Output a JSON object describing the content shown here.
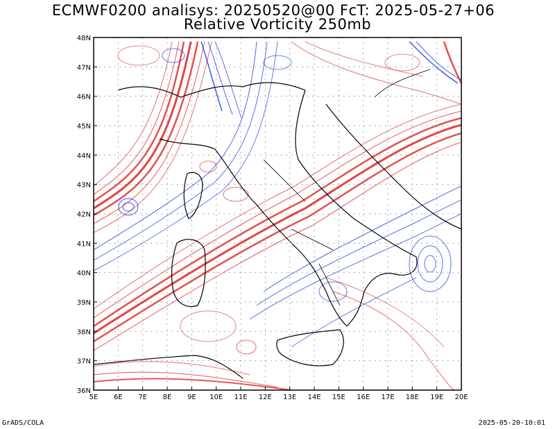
{
  "title_line1": "ECMWF0200 analisys: 20250520@00 FcT: 2025-05-27+06",
  "title_line2": "Relative Vorticity 250mb",
  "footer_left": "GrADS/COLA",
  "footer_right": "2025-05-20-10:01",
  "map": {
    "lon_range": [
      5,
      20
    ],
    "lat_range": [
      36,
      48
    ],
    "lon_labels": [
      "5E",
      "6E",
      "7E",
      "8E",
      "9E",
      "10E",
      "11E",
      "12E",
      "13E",
      "14E",
      "15E",
      "16E",
      "17E",
      "18E",
      "19E",
      "20E"
    ],
    "lat_labels": [
      "36N",
      "37N",
      "38N",
      "39N",
      "40N",
      "41N",
      "42N",
      "43N",
      "44N",
      "45N",
      "46N",
      "47N",
      "48N"
    ],
    "grid": true,
    "colors": {
      "positive": "#e03030",
      "negative": "#2040e0",
      "coast": "#000000",
      "grid": "#888888"
    }
  }
}
